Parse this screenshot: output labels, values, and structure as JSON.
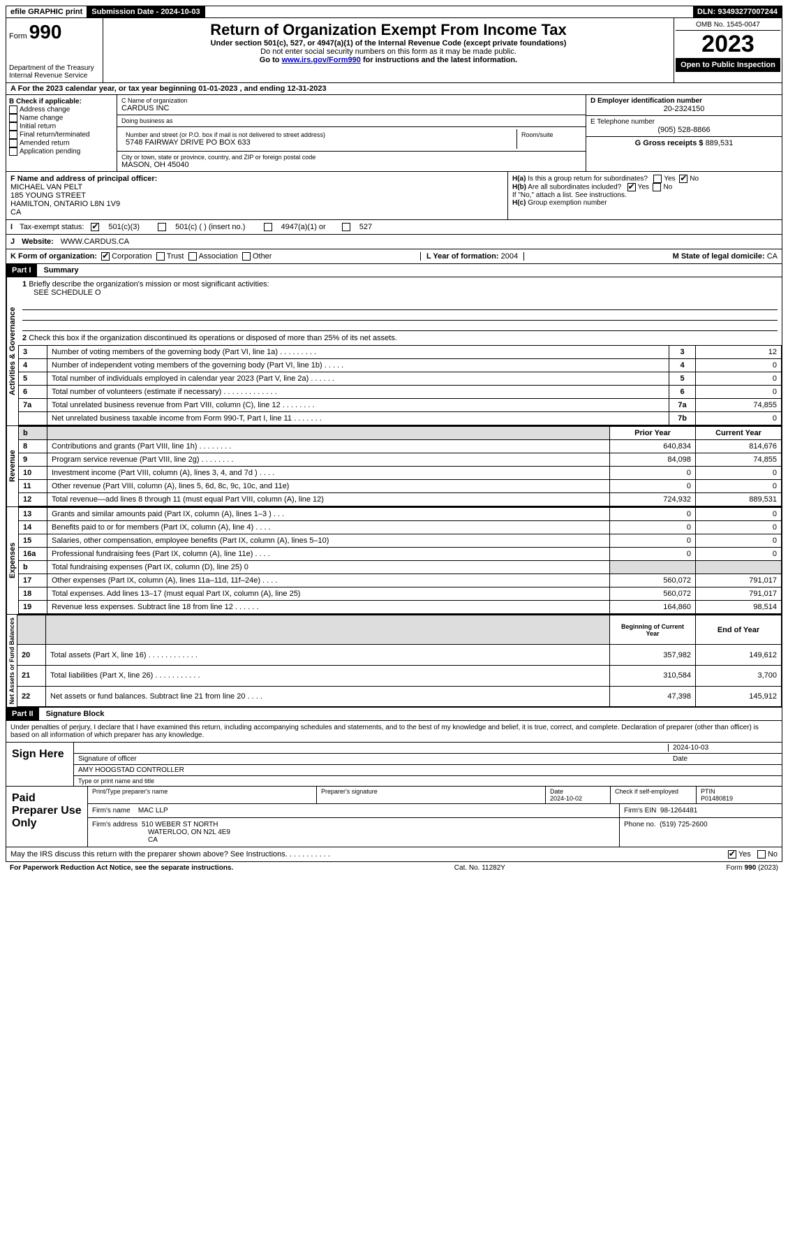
{
  "topbar": {
    "efile": "efile GRAPHIC print",
    "submission_label": "Submission Date - 2024-10-03",
    "dln_label": "DLN: 93493277007244"
  },
  "header": {
    "form_label": "Form",
    "form_number": "990",
    "dept": "Department of the Treasury",
    "irs": "Internal Revenue Service",
    "title": "Return of Organization Exempt From Income Tax",
    "subtitle": "Under section 501(c), 527, or 4947(a)(1) of the Internal Revenue Code (except private foundations)",
    "ssn_warning": "Do not enter social security numbers on this form as it may be made public.",
    "goto": "Go to",
    "goto_link": "www.irs.gov/Form990",
    "goto_rest": "for instructions and the latest information.",
    "omb": "OMB No. 1545-0047",
    "year": "2023",
    "open": "Open to Public Inspection"
  },
  "section_a": {
    "text": "A For the 2023 calendar year, or tax year beginning 01-01-2023   , and ending 12-31-2023"
  },
  "section_b": {
    "label": "B Check if applicable:",
    "items": [
      "Address change",
      "Name change",
      "Initial return",
      "Final return/terminated",
      "Amended return",
      "Application pending"
    ]
  },
  "section_c": {
    "name_label": "C Name of organization",
    "name": "CARDUS INC",
    "dba_label": "Doing business as",
    "street_label": "Number and street (or P.O. box if mail is not delivered to street address)",
    "street": "5748 FAIRWAY DRIVE PO BOX 633",
    "room_label": "Room/suite",
    "city_label": "City or town, state or province, country, and ZIP or foreign postal code",
    "city": "MASON, OH  45040"
  },
  "section_d": {
    "label": "D Employer identification number",
    "value": "20-2324150"
  },
  "section_e": {
    "label": "E Telephone number",
    "value": "(905) 528-8866"
  },
  "section_g": {
    "label": "G Gross receipts $",
    "value": "889,531"
  },
  "section_f": {
    "label": "F Name and address of principal officer:",
    "name": "MICHAEL VAN PELT",
    "street": "185 YOUNG STREET",
    "city": "HAMILTON, ONTARIO  L8N 1V9",
    "country": "CA"
  },
  "section_h": {
    "a_label": "H(a)",
    "a_text": "Is this a group return for subordinates?",
    "b_label": "H(b)",
    "b_text": "Are all subordinates included?",
    "b_note": "If \"No,\" attach a list. See instructions.",
    "c_label": "H(c)",
    "c_text": "Group exemption number",
    "yes": "Yes",
    "no": "No"
  },
  "tax_status": {
    "label": "I",
    "text": "Tax-exempt status:",
    "opts": [
      "501(c)(3)",
      "501(c) (  ) (insert no.)",
      "4947(a)(1) or",
      "527"
    ]
  },
  "website": {
    "label": "J",
    "text": "Website:",
    "value": "WWW.CARDUS.CA"
  },
  "korg": {
    "label": "K Form of organization:",
    "opts": [
      "Corporation",
      "Trust",
      "Association",
      "Other"
    ],
    "l_label": "L Year of formation:",
    "l_value": "2004",
    "m_label": "M State of legal domicile:",
    "m_value": "CA"
  },
  "part1": {
    "header": "Part I",
    "title": "Summary",
    "line1_label": "1",
    "line1_text": "Briefly describe the organization's mission or most significant activities:",
    "line1_value": "SEE SCHEDULE O",
    "line2_label": "2",
    "line2_text": "Check this box        if the organization discontinued its operations or disposed of more than 25% of its net assets.",
    "rows": [
      {
        "n": "3",
        "text": "Number of voting members of the governing body (Part VI, line 1a)  .   .   .   .   .   .   .   .   .",
        "box": "3",
        "val": "12"
      },
      {
        "n": "4",
        "text": "Number of independent voting members of the governing body (Part VI, line 1b)   .   .   .   .   .",
        "box": "4",
        "val": "0"
      },
      {
        "n": "5",
        "text": "Total number of individuals employed in calendar year 2023 (Part V, line 2a)  .   .   .   .   .   .",
        "box": "5",
        "val": "0"
      },
      {
        "n": "6",
        "text": "Total number of volunteers (estimate if necessary)   .   .   .   .   .   .   .   .   .   .   .   .   .",
        "box": "6",
        "val": "0"
      },
      {
        "n": "7a",
        "text": "Total unrelated business revenue from Part VIII, column (C), line 12  .   .   .   .   .   .   .   .",
        "box": "7a",
        "val": "74,855"
      },
      {
        "n": "",
        "text": "Net unrelated business taxable income from Form 990-T, Part I, line 11  .   .   .   .   .   .   .",
        "box": "7b",
        "val": "0"
      }
    ],
    "prior_year": "Prior Year",
    "current_year": "Current Year",
    "revenue_rows": [
      {
        "n": "8",
        "text": "Contributions and grants (Part VIII, line 1h)   .   .   .   .   .   .   .   .",
        "py": "640,834",
        "cy": "814,676"
      },
      {
        "n": "9",
        "text": "Program service revenue (Part VIII, line 2g)   .   .   .   .   .   .   .   .",
        "py": "84,098",
        "cy": "74,855"
      },
      {
        "n": "10",
        "text": "Investment income (Part VIII, column (A), lines 3, 4, and 7d )   .   .   .   .",
        "py": "0",
        "cy": "0"
      },
      {
        "n": "11",
        "text": "Other revenue (Part VIII, column (A), lines 5, 6d, 8c, 9c, 10c, and 11e)",
        "py": "0",
        "cy": "0"
      },
      {
        "n": "12",
        "text": "Total revenue—add lines 8 through 11 (must equal Part VIII, column (A), line 12)",
        "py": "724,932",
        "cy": "889,531"
      }
    ],
    "expense_rows": [
      {
        "n": "13",
        "text": "Grants and similar amounts paid (Part IX, column (A), lines 1–3 )  .   .   .",
        "py": "0",
        "cy": "0"
      },
      {
        "n": "14",
        "text": "Benefits paid to or for members (Part IX, column (A), line 4)   .   .   .   .",
        "py": "0",
        "cy": "0"
      },
      {
        "n": "15",
        "text": "Salaries, other compensation, employee benefits (Part IX, column (A), lines 5–10)",
        "py": "0",
        "cy": "0"
      },
      {
        "n": "16a",
        "text": "Professional fundraising fees (Part IX, column (A), line 11e)   .   .   .   .",
        "py": "0",
        "cy": "0"
      },
      {
        "n": "b",
        "text": "Total fundraising expenses (Part IX, column (D), line 25) 0",
        "py": "",
        "cy": ""
      },
      {
        "n": "17",
        "text": "Other expenses (Part IX, column (A), lines 11a–11d, 11f–24e)   .   .   .   .",
        "py": "560,072",
        "cy": "791,017"
      },
      {
        "n": "18",
        "text": "Total expenses. Add lines 13–17 (must equal Part IX, column (A), line 25)",
        "py": "560,072",
        "cy": "791,017"
      },
      {
        "n": "19",
        "text": "Revenue less expenses. Subtract line 18 from line 12  .   .   .   .   .   .",
        "py": "164,860",
        "cy": "98,514"
      }
    ],
    "begin_year": "Beginning of Current Year",
    "end_year": "End of Year",
    "net_rows": [
      {
        "n": "20",
        "text": "Total assets (Part X, line 16)  .   .   .   .   .   .   .   .   .   .   .   .",
        "py": "357,982",
        "cy": "149,612"
      },
      {
        "n": "21",
        "text": "Total liabilities (Part X, line 26)  .   .   .   .   .   .   .   .   .   .   .",
        "py": "310,584",
        "cy": "3,700"
      },
      {
        "n": "22",
        "text": "Net assets or fund balances. Subtract line 21 from line 20  .   .   .   .",
        "py": "47,398",
        "cy": "145,912"
      }
    ],
    "side_labels": {
      "gov": "Activities & Governance",
      "rev": "Revenue",
      "exp": "Expenses",
      "net": "Net Assets or Fund Balances"
    }
  },
  "part2": {
    "header": "Part II",
    "title": "Signature Block",
    "penalties": "Under penalties of perjury, I declare that I have examined this return, including accompanying schedules and statements, and to the best of my knowledge and belief, it is true, correct, and complete. Declaration of preparer (other than officer) is based on all information of which preparer has any knowledge.",
    "sign_here": "Sign Here",
    "sig_officer": "Signature of officer",
    "sig_date_label": "Date",
    "sig_date": "2024-10-03",
    "officer_name": "AMY HOOGSTAD  CONTROLLER",
    "type_name": "Type or print name and title",
    "paid": "Paid Preparer Use Only",
    "print_name_label": "Print/Type preparer's name",
    "prep_sig_label": "Preparer's signature",
    "date_label": "Date",
    "date_val": "2024-10-02",
    "check_if": "Check        if self-employed",
    "ptin_label": "PTIN",
    "ptin": "P01480819",
    "firm_name_label": "Firm's name",
    "firm_name": "MAC LLP",
    "firm_ein_label": "Firm's EIN",
    "firm_ein": "98-1264481",
    "firm_addr_label": "Firm's address",
    "firm_addr1": "510 WEBER ST NORTH",
    "firm_addr2": "WATERLOO, ON  N2L 4E9",
    "firm_addr3": "CA",
    "phone_label": "Phone no.",
    "phone": "(519) 725-2600",
    "discuss": "May the IRS discuss this return with the preparer shown above? See Instructions.   .   .   .   .   .   .   .   .   .   .",
    "yes": "Yes",
    "no": "No"
  },
  "footer": {
    "pra": "For Paperwork Reduction Act Notice, see the separate instructions.",
    "cat": "Cat. No. 11282Y",
    "form": "Form 990 (2023)"
  }
}
